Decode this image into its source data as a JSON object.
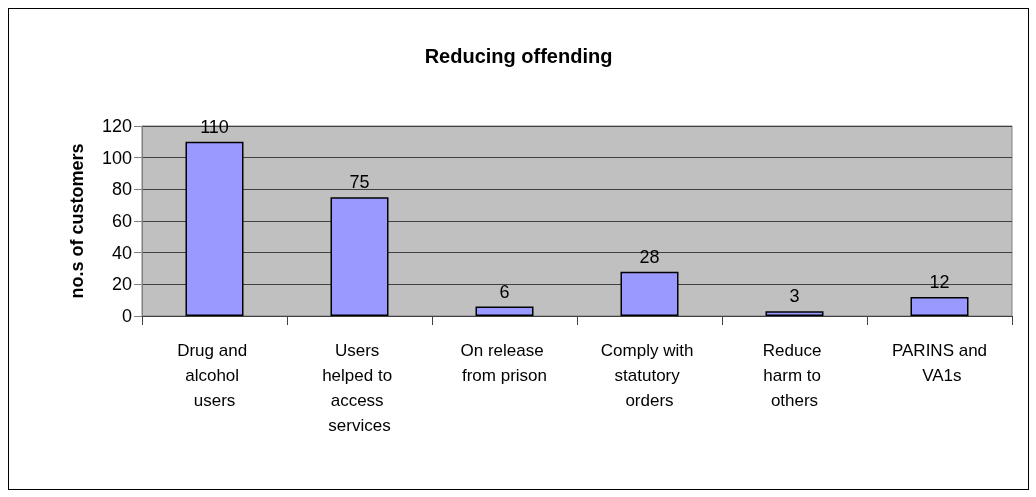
{
  "chart_data": {
    "type": "bar",
    "title": "Reducing offending",
    "ylabel": "no.s of customers",
    "categories": [
      "Drug and alcohol users",
      "Users helped to access services",
      "On release from prison",
      "Comply with statutory orders",
      "Reduce harm to others",
      "PARINS and VA1s"
    ],
    "values": [
      110,
      75,
      6,
      28,
      3,
      12
    ],
    "color": "#9999ff",
    "ylim": [
      0,
      120
    ],
    "yticks": [
      0,
      20,
      40,
      60,
      80,
      100,
      120
    ],
    "grid": "y",
    "data_labels": true
  }
}
